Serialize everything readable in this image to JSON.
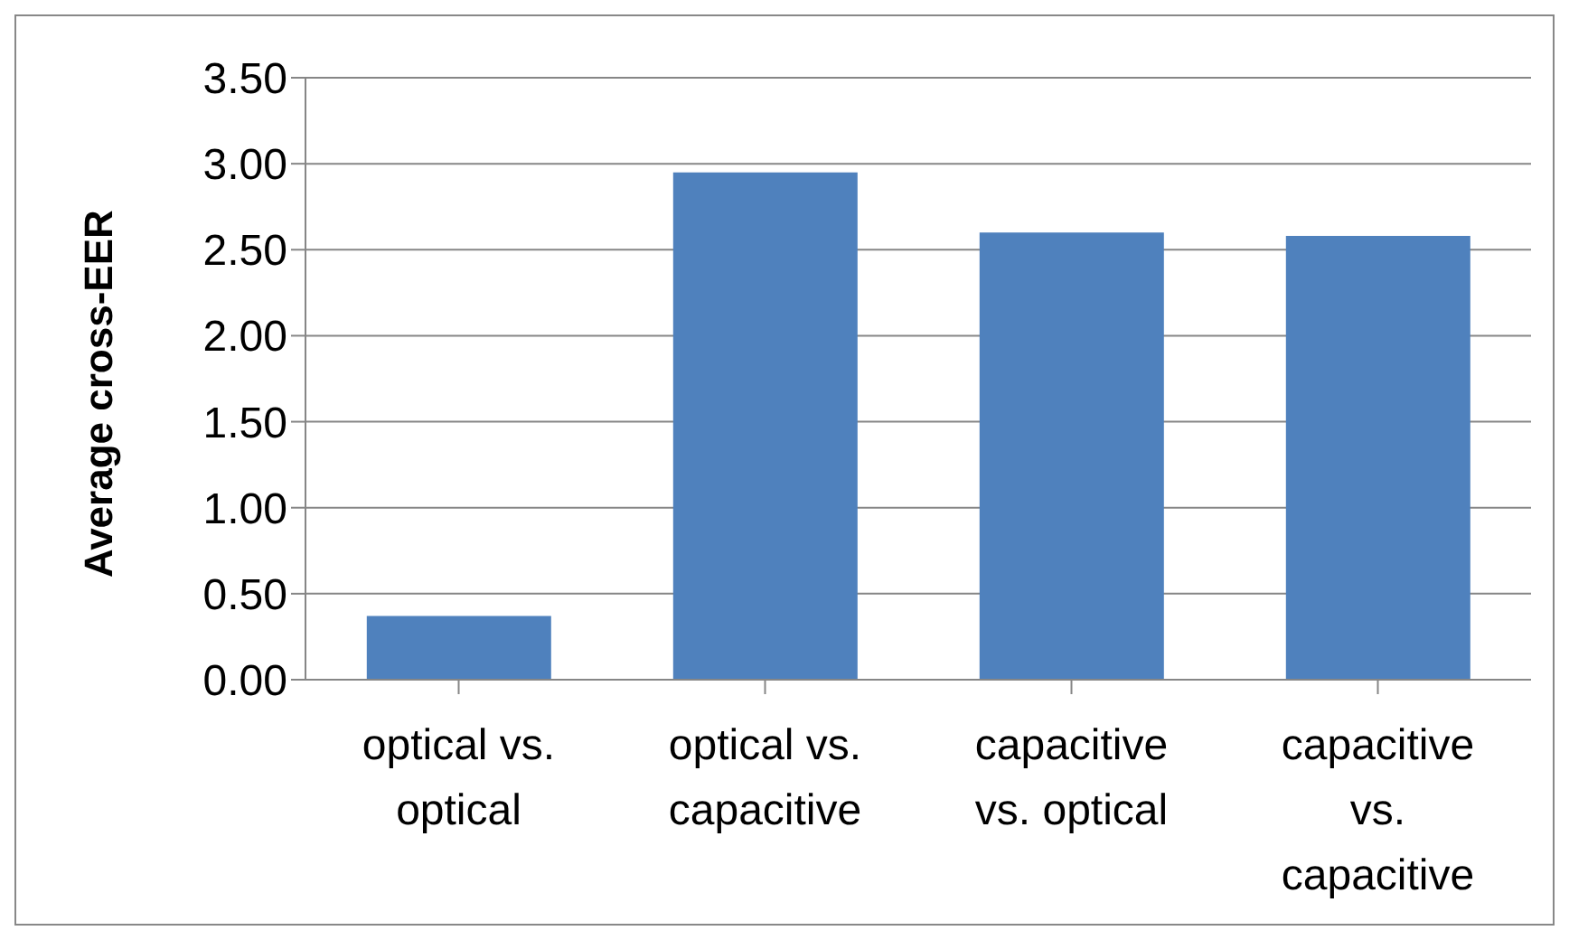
{
  "chart_data": {
    "type": "bar",
    "ylabel": "Average cross-EER",
    "categories": [
      "optical vs. optical",
      "optical vs. capacitive",
      "capacitive vs. optical",
      "capacitive vs. capacitive"
    ],
    "values": [
      0.37,
      2.95,
      2.6,
      2.58
    ],
    "color": "#4f81bd",
    "ylim": [
      0,
      3.5
    ],
    "yticks": [
      {
        "value": 0,
        "label": "0.00"
      },
      {
        "value": 0.5,
        "label": "0.50"
      },
      {
        "value": 1,
        "label": "1.00"
      },
      {
        "value": 1.5,
        "label": "1.50"
      },
      {
        "value": 2,
        "label": "2.00"
      },
      {
        "value": 2.5,
        "label": "2.50"
      },
      {
        "value": 3,
        "label": "3.00"
      },
      {
        "value": 3.5,
        "label": "3.50"
      }
    ],
    "grid": "y",
    "legend": false
  }
}
